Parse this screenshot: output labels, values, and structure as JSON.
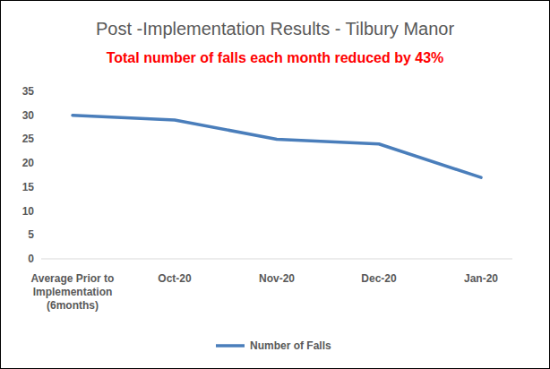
{
  "chart_data": {
    "type": "line",
    "title": "Post -Implementation Results - Tilbury Manor",
    "subtitle": "Total number of falls each month reduced by 43%",
    "categories": [
      "Average Prior to Implementation (6months)",
      "Oct-20",
      "Nov-20",
      "Dec-20",
      "Jan-20"
    ],
    "series": [
      {
        "name": "Number of Falls",
        "color": "#4a7ebb",
        "values": [
          30,
          29,
          25,
          24,
          17
        ]
      }
    ],
    "ylim": [
      0,
      35
    ],
    "yticks": [
      0,
      5,
      10,
      15,
      20,
      25,
      30,
      35
    ],
    "grid": false,
    "legend": "bottom"
  }
}
